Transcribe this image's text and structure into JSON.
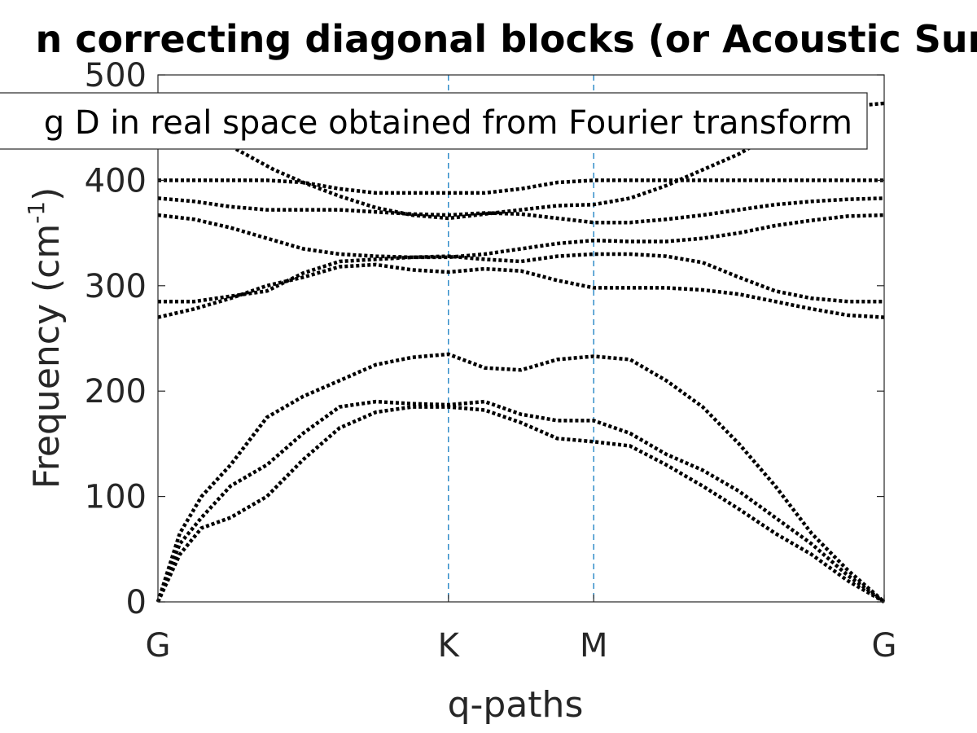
{
  "chart_data": {
    "type": "line",
    "title": "n correcting diagonal blocks (or Acoustic Sum",
    "xlabel": "q-paths",
    "ylabel": "Frequency (cm",
    "ylabel_sup": "-1",
    "ylabel_suffix": ")",
    "ylim": [
      0,
      500
    ],
    "xlim": [
      0,
      1
    ],
    "yticks": [
      0,
      100,
      200,
      300,
      400,
      500
    ],
    "xticks": [
      {
        "label": "G",
        "x": 0.0
      },
      {
        "label": "K",
        "x": 0.4
      },
      {
        "label": "M",
        "x": 0.6
      },
      {
        "label": "G",
        "x": 1.0
      }
    ],
    "vlines_at": [
      0.4,
      0.6
    ],
    "legend": {
      "text": "g D in real space obtained from Fourier transform",
      "location": "top"
    },
    "line_style": "dotted",
    "colors": {
      "series": "#000000",
      "vline": "#0072bd",
      "axis": "#262626"
    },
    "grid": false,
    "series": [
      {
        "x": [
          0,
          0.03,
          0.06,
          0.1,
          0.15,
          0.2,
          0.25,
          0.3,
          0.35,
          0.4,
          0.45,
          0.5,
          0.55,
          0.6,
          0.65,
          0.7,
          0.75,
          0.8,
          0.85,
          0.9,
          0.95,
          1.0
        ],
        "y": [
          0,
          45,
          70,
          80,
          100,
          135,
          165,
          180,
          185,
          185,
          182,
          170,
          155,
          152,
          148,
          130,
          110,
          88,
          65,
          45,
          20,
          0
        ]
      },
      {
        "x": [
          0,
          0.03,
          0.06,
          0.1,
          0.15,
          0.2,
          0.25,
          0.3,
          0.35,
          0.4,
          0.45,
          0.5,
          0.55,
          0.6,
          0.65,
          0.7,
          0.75,
          0.8,
          0.85,
          0.9,
          0.95,
          1.0
        ],
        "y": [
          0,
          55,
          80,
          110,
          130,
          160,
          185,
          190,
          188,
          187,
          190,
          178,
          172,
          172,
          160,
          140,
          125,
          105,
          80,
          55,
          25,
          0
        ]
      },
      {
        "x": [
          0,
          0.03,
          0.06,
          0.1,
          0.15,
          0.2,
          0.25,
          0.3,
          0.35,
          0.4,
          0.45,
          0.5,
          0.55,
          0.6,
          0.65,
          0.7,
          0.75,
          0.8,
          0.85,
          0.9,
          0.95,
          1.0
        ],
        "y": [
          0,
          65,
          100,
          130,
          175,
          195,
          210,
          225,
          232,
          235,
          222,
          220,
          230,
          233,
          230,
          210,
          185,
          150,
          110,
          65,
          30,
          0
        ]
      },
      {
        "x": [
          0,
          0.05,
          0.1,
          0.15,
          0.2,
          0.25,
          0.3,
          0.35,
          0.4,
          0.45,
          0.5,
          0.55,
          0.6,
          0.65,
          0.7,
          0.75,
          0.8,
          0.85,
          0.9,
          0.95,
          1.0
        ],
        "y": [
          270,
          278,
          288,
          300,
          308,
          318,
          320,
          315,
          313,
          316,
          314,
          305,
          298,
          298,
          298,
          296,
          292,
          285,
          278,
          272,
          270
        ]
      },
      {
        "x": [
          0,
          0.05,
          0.1,
          0.15,
          0.2,
          0.25,
          0.3,
          0.35,
          0.4,
          0.45,
          0.5,
          0.55,
          0.6,
          0.65,
          0.7,
          0.75,
          0.8,
          0.85,
          0.9,
          0.95,
          1.0
        ],
        "y": [
          285,
          285,
          290,
          295,
          312,
          323,
          325,
          327,
          328,
          325,
          323,
          328,
          330,
          330,
          328,
          322,
          308,
          295,
          288,
          285,
          285
        ]
      },
      {
        "x": [
          0,
          0.05,
          0.1,
          0.15,
          0.2,
          0.25,
          0.3,
          0.35,
          0.4,
          0.45,
          0.5,
          0.55,
          0.6,
          0.65,
          0.7,
          0.75,
          0.8,
          0.85,
          0.9,
          0.95,
          1.0
        ],
        "y": [
          367,
          363,
          355,
          345,
          335,
          330,
          328,
          327,
          327,
          330,
          335,
          340,
          343,
          342,
          342,
          345,
          350,
          357,
          362,
          366,
          367
        ]
      },
      {
        "x": [
          0,
          0.05,
          0.1,
          0.15,
          0.2,
          0.25,
          0.3,
          0.35,
          0.4,
          0.45,
          0.5,
          0.55,
          0.6,
          0.65,
          0.7,
          0.75,
          0.8,
          0.85,
          0.9,
          0.95,
          1.0
        ],
        "y": [
          383,
          380,
          375,
          372,
          372,
          372,
          370,
          368,
          367,
          369,
          368,
          364,
          360,
          360,
          363,
          367,
          372,
          377,
          380,
          382,
          383
        ]
      },
      {
        "x": [
          0,
          0.05,
          0.1,
          0.15,
          0.2,
          0.25,
          0.3,
          0.35,
          0.4,
          0.45,
          0.5,
          0.55,
          0.6,
          0.65,
          0.7,
          0.75,
          0.8,
          0.85,
          0.9,
          0.95,
          1.0
        ],
        "y": [
          400,
          400,
          400,
          400,
          398,
          392,
          388,
          388,
          388,
          388,
          392,
          398,
          400,
          400,
          400,
          400,
          400,
          400,
          400,
          400,
          400
        ]
      },
      {
        "x": [
          0.08,
          0.12,
          0.16,
          0.2,
          0.25,
          0.3,
          0.35,
          0.4,
          0.45,
          0.5,
          0.55,
          0.6,
          0.65,
          0.7,
          0.75,
          0.8,
          0.85,
          0.9,
          0.95,
          1.0
        ],
        "y": [
          440,
          425,
          410,
          398,
          385,
          374,
          367,
          364,
          368,
          372,
          376,
          377,
          383,
          395,
          410,
          425,
          445,
          460,
          470,
          473
        ]
      }
    ]
  }
}
